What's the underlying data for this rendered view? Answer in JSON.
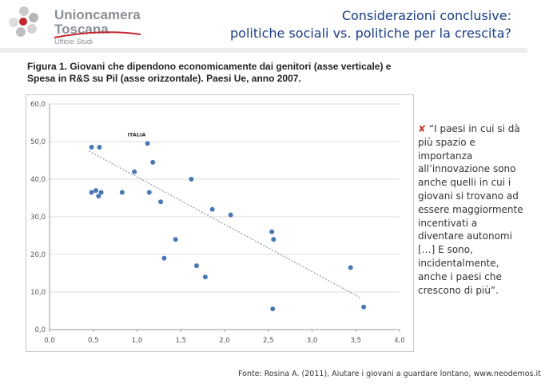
{
  "header": {
    "logo": {
      "name_line1": "Unioncamera",
      "name_line2": "Toscana",
      "sub": "Ufficio Studi"
    },
    "title_line1": "Considerazioni conclusive:",
    "title_line2": "politiche sociali vs. politiche per la crescita?"
  },
  "figure": {
    "caption_line1": "Figura 1. Giovani che dipendono economicamente dai genitori (asse verticale) e",
    "caption_line2": "Spesa in R&S su Pil (asse orizzontale). Paesi Ue, anno 2007."
  },
  "side_text": {
    "bullet": "✘",
    "quote": "“I paesi in cui si dà più spazio e importanza all’innovazione sono anche quelli in cui i giovani si trovano ad essere maggiormente incentivati a diventare autonomi […] E sono, incidentalmente, anche i paesi che crescono di più”."
  },
  "source": "Fonte: Rosina A. (2011), Aiutare i giovani a guardare lontano, www.neodemos.it",
  "chart_data": {
    "type": "scatter",
    "title": "",
    "xlabel": "",
    "ylabel": "",
    "xlim": [
      0,
      4
    ],
    "ylim": [
      0,
      60
    ],
    "x_ticks": [
      "0,0",
      "0,5",
      "1,0",
      "1,5",
      "2,0",
      "2,5",
      "3,0",
      "3,5",
      "4,0"
    ],
    "y_ticks": [
      "0,0",
      "10,0",
      "20,0",
      "30,0",
      "40,0",
      "50,0",
      "60,0"
    ],
    "grid": "horizontal",
    "point_color": "#4a78b5",
    "trendline": {
      "style": "dotted",
      "color": "#8899aa",
      "x": [
        0.45,
        3.55
      ],
      "y": [
        47.5,
        8.5
      ]
    },
    "annotations": [
      {
        "text": "ITALIA",
        "x": 0.89,
        "y": 52.0
      }
    ],
    "points": [
      {
        "x": 0.48,
        "y": 48.5
      },
      {
        "x": 0.57,
        "y": 48.5
      },
      {
        "x": 1.12,
        "y": 49.5
      },
      {
        "x": 0.97,
        "y": 42.0
      },
      {
        "x": 1.18,
        "y": 44.5
      },
      {
        "x": 1.62,
        "y": 40.0
      },
      {
        "x": 0.48,
        "y": 36.5
      },
      {
        "x": 0.53,
        "y": 37.0
      },
      {
        "x": 0.56,
        "y": 35.5
      },
      {
        "x": 0.59,
        "y": 36.5
      },
      {
        "x": 0.83,
        "y": 36.5
      },
      {
        "x": 1.14,
        "y": 36.5
      },
      {
        "x": 1.27,
        "y": 34.0
      },
      {
        "x": 1.86,
        "y": 32.0
      },
      {
        "x": 2.07,
        "y": 30.5
      },
      {
        "x": 2.54,
        "y": 26.0
      },
      {
        "x": 2.56,
        "y": 24.0
      },
      {
        "x": 1.44,
        "y": 24.0
      },
      {
        "x": 1.31,
        "y": 19.0
      },
      {
        "x": 1.68,
        "y": 17.0
      },
      {
        "x": 1.78,
        "y": 14.0
      },
      {
        "x": 3.44,
        "y": 16.5
      },
      {
        "x": 2.55,
        "y": 5.5
      },
      {
        "x": 3.59,
        "y": 6.0
      }
    ]
  }
}
